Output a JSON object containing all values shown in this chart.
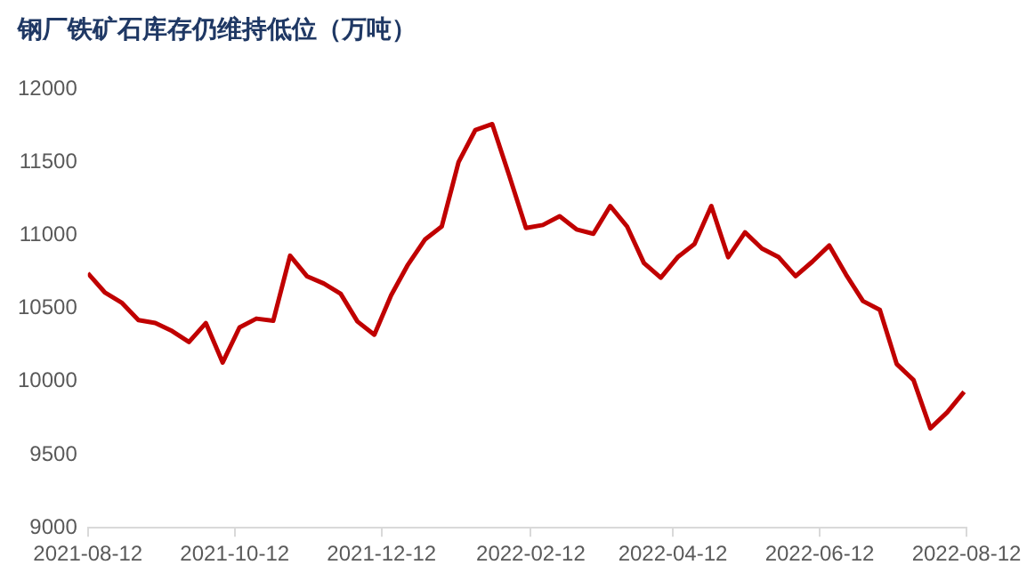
{
  "chart_data": {
    "type": "line",
    "title": "钢厂铁矿石库存仍维持低位（万吨）",
    "x": [
      "2021-08-12",
      "2021-08-19",
      "2021-08-26",
      "2021-09-02",
      "2021-09-09",
      "2021-09-16",
      "2021-09-23",
      "2021-09-30",
      "2021-10-07",
      "2021-10-14",
      "2021-10-21",
      "2021-10-28",
      "2021-11-04",
      "2021-11-11",
      "2021-11-18",
      "2021-11-25",
      "2021-12-02",
      "2021-12-09",
      "2021-12-16",
      "2021-12-23",
      "2021-12-30",
      "2022-01-06",
      "2022-01-13",
      "2022-01-20",
      "2022-01-27",
      "2022-02-03",
      "2022-02-10",
      "2022-02-17",
      "2022-02-24",
      "2022-03-03",
      "2022-03-10",
      "2022-03-17",
      "2022-03-24",
      "2022-03-31",
      "2022-04-07",
      "2022-04-14",
      "2022-04-21",
      "2022-04-28",
      "2022-05-05",
      "2022-05-12",
      "2022-05-19",
      "2022-05-26",
      "2022-06-02",
      "2022-06-09",
      "2022-06-16",
      "2022-06-23",
      "2022-06-30",
      "2022-07-07",
      "2022-07-14",
      "2022-07-21",
      "2022-07-28",
      "2022-08-04",
      "2022-08-11"
    ],
    "series": [
      {
        "color": "#c00000",
        "values": [
          10740,
          10610,
          10540,
          10420,
          10400,
          10345,
          10270,
          10400,
          10130,
          10370,
          10430,
          10415,
          10860,
          10720,
          10670,
          10600,
          10410,
          10320,
          10590,
          10800,
          10970,
          11060,
          11500,
          11720,
          11760,
          11410,
          11050,
          11070,
          11130,
          11040,
          11010,
          11200,
          11060,
          10810,
          10710,
          10850,
          10940,
          11200,
          10850,
          11020,
          10910,
          10850,
          10720,
          10820,
          10930,
          10730,
          10550,
          10490,
          10120,
          10010,
          9680,
          9790,
          9930
        ]
      }
    ],
    "xlim": [
      "2021-08-12",
      "2022-08-12"
    ],
    "xticks": [
      "2021-08-12",
      "2021-10-12",
      "2021-12-12",
      "2022-02-12",
      "2022-04-12",
      "2022-06-12",
      "2022-08-12"
    ],
    "ylim": [
      9000,
      12000
    ],
    "yticks": [
      9000,
      9500,
      10000,
      10500,
      11000,
      11500,
      12000
    ],
    "grid": false,
    "legend": false,
    "marker": "none",
    "line_style": "solid"
  }
}
